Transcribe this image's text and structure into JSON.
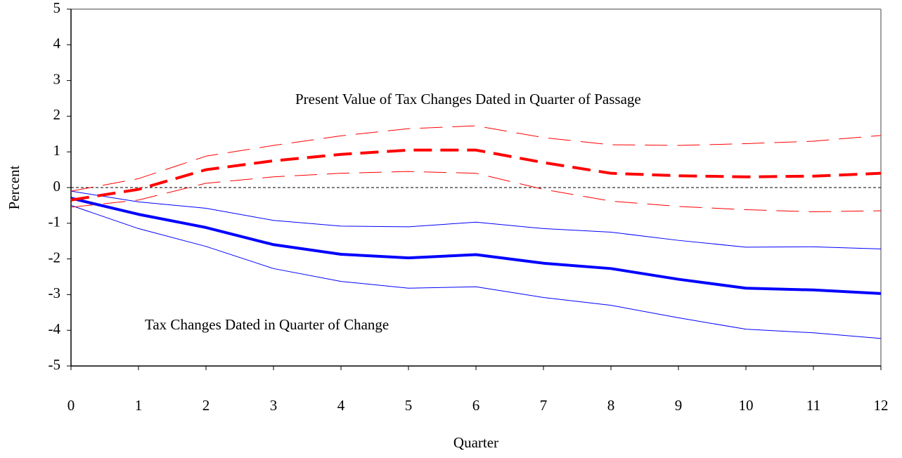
{
  "chart_data": {
    "type": "line",
    "x_label": "Quarter",
    "y_label": "Percent",
    "annotations": [
      "Present Value of Tax Changes Dated in Quarter of Passage",
      "Tax Changes Dated in Quarter of Change"
    ],
    "x": [
      0,
      1,
      2,
      3,
      4,
      5,
      6,
      7,
      8,
      9,
      10,
      11,
      12
    ],
    "series": [
      {
        "color": "#0000ff",
        "width": 4,
        "dash": "solid",
        "values": [
          -0.3,
          -0.75,
          -1.12,
          -1.6,
          -1.87,
          -1.97,
          -1.88,
          -2.12,
          -2.27,
          -2.57,
          -2.82,
          -2.87,
          -2.97
        ]
      },
      {
        "color": "#0000ff",
        "width": 1,
        "dash": "solid",
        "values": [
          -0.1,
          -0.4,
          -0.58,
          -0.92,
          -1.08,
          -1.1,
          -0.97,
          -1.15,
          -1.25,
          -1.48,
          -1.67,
          -1.66,
          -1.72
        ]
      },
      {
        "color": "#0000ff",
        "width": 1,
        "dash": "solid",
        "values": [
          -0.5,
          -1.15,
          -1.65,
          -2.27,
          -2.63,
          -2.82,
          -2.78,
          -3.08,
          -3.3,
          -3.65,
          -3.97,
          -4.07,
          -4.23
        ]
      },
      {
        "color": "#ff0000",
        "width": 4,
        "dash": "dashed",
        "values": [
          -0.35,
          -0.05,
          0.5,
          0.75,
          0.93,
          1.05,
          1.05,
          0.7,
          0.4,
          0.33,
          0.3,
          0.32,
          0.4
        ]
      },
      {
        "color": "#ff0000",
        "width": 1,
        "dash": "dashed",
        "values": [
          -0.1,
          0.25,
          0.88,
          1.18,
          1.45,
          1.65,
          1.73,
          1.4,
          1.2,
          1.18,
          1.23,
          1.3,
          1.46
        ]
      },
      {
        "color": "#ff0000",
        "width": 1,
        "dash": "dashed",
        "values": [
          -0.55,
          -0.35,
          0.12,
          0.3,
          0.4,
          0.45,
          0.4,
          -0.05,
          -0.38,
          -0.53,
          -0.62,
          -0.68,
          -0.65
        ]
      }
    ],
    "reference_line": 0,
    "xlim": [
      0,
      12
    ],
    "xticks": [
      0,
      1,
      2,
      3,
      4,
      5,
      6,
      7,
      8,
      9,
      10,
      11,
      12
    ],
    "ylim": [
      -5,
      5
    ],
    "yticks": [
      -5,
      -4,
      -3,
      -2,
      -1,
      0,
      1,
      2,
      3,
      4,
      5
    ],
    "grid": false
  }
}
